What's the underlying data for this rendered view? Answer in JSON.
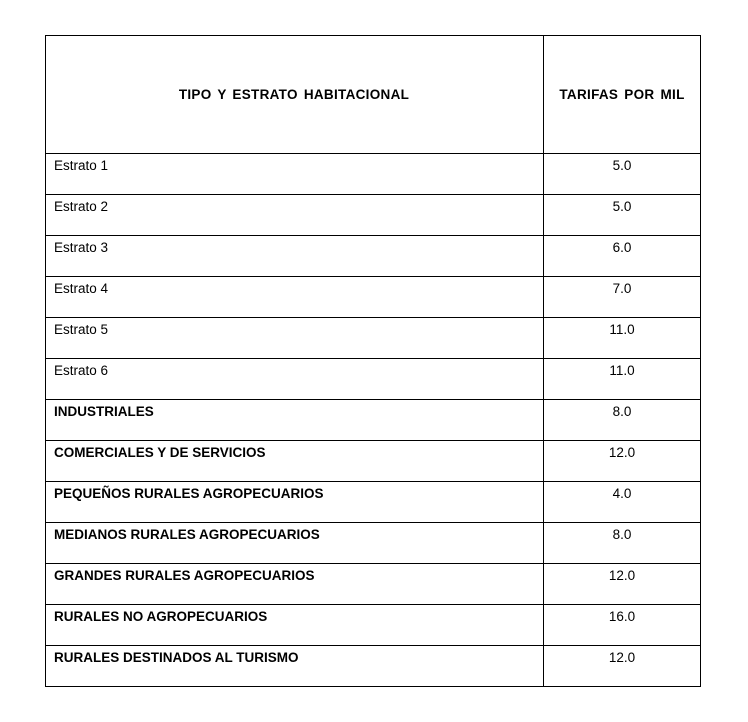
{
  "table": {
    "columns": [
      "TIPO   Y    ESTRATO  HABITACIONAL",
      "TARIFAS POR MIL"
    ],
    "rows": [
      {
        "label": "Estrato 1",
        "value": "5.0",
        "bold": false
      },
      {
        "label": "Estrato 2",
        "value": "5.0",
        "bold": false
      },
      {
        "label": "Estrato 3",
        "value": "6.0",
        "bold": false
      },
      {
        "label": "Estrato 4",
        "value": "7.0",
        "bold": false
      },
      {
        "label": "Estrato 5",
        "value": "11.0",
        "bold": false
      },
      {
        "label": "Estrato 6",
        "value": "11.0",
        "bold": false
      },
      {
        "label": "INDUSTRIALES",
        "value": "8.0",
        "bold": true
      },
      {
        "label": "COMERCIALES Y DE SERVICIOS",
        "value": "12.0",
        "bold": true
      },
      {
        "label": "PEQUEÑOS RURALES AGROPECUARIOS",
        "value": "4.0",
        "bold": true
      },
      {
        "label": "MEDIANOS  RURALES AGROPECUARIOS",
        "value": "8.0",
        "bold": true
      },
      {
        "label": "GRANDES RURALES AGROPECUARIOS",
        "value": "12.0",
        "bold": true
      },
      {
        "label": "RURALES NO AGROPECUARIOS",
        "value": "16.0",
        "bold": true
      },
      {
        "label": "RURALES DESTINADOS AL TURISMO",
        "value": "12.0",
        "bold": true
      }
    ]
  }
}
